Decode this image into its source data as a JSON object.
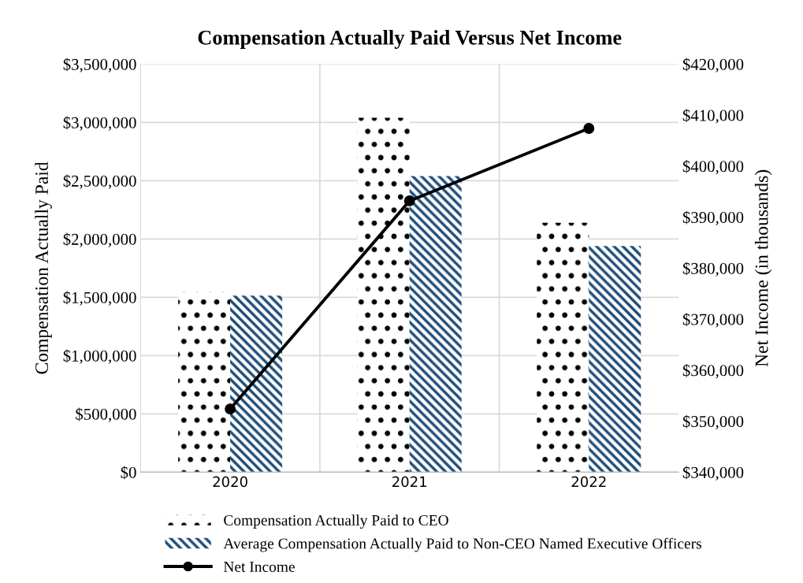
{
  "chart_data": {
    "type": "bar",
    "title": "Compensation Actually Paid Versus Net Income",
    "ylabel": "Compensation Actually Paid",
    "y2label": "Net Income (in thousands)",
    "categories": [
      "2020",
      "2021",
      "2022"
    ],
    "series": [
      {
        "name": "Compensation Actually Paid to CEO",
        "color": "#000000",
        "values": [
          1550000,
          3040000,
          2140000
        ]
      },
      {
        "name": "Average Compensation Actually Paid to Non-CEO Named Executive Officers",
        "color": "#1f4e79",
        "values": [
          1515000,
          2540000,
          1940000
        ]
      },
      {
        "name": "Net Income",
        "type": "line",
        "axis": "y2",
        "color": "#000000",
        "marker": "circle",
        "line_style": "solid",
        "values": [
          352400,
          393200,
          407400
        ]
      }
    ],
    "ylim": [
      0,
      3500000
    ],
    "yticks": [
      {
        "value": 0,
        "label": "$0"
      },
      {
        "value": 500000,
        "label": "$500,000"
      },
      {
        "value": 1000000,
        "label": "$1,000,000"
      },
      {
        "value": 1500000,
        "label": "$1,500,000"
      },
      {
        "value": 2000000,
        "label": "$2,000,000"
      },
      {
        "value": 2500000,
        "label": "$2,500,000"
      },
      {
        "value": 3000000,
        "label": "$3,000,000"
      },
      {
        "value": 3500000,
        "label": "$3,500,000"
      }
    ],
    "y2lim": [
      340000,
      420000
    ],
    "y2ticks": [
      {
        "value": 340000,
        "label": "$340,000"
      },
      {
        "value": 350000,
        "label": "$350,000"
      },
      {
        "value": 360000,
        "label": "$360,000"
      },
      {
        "value": 370000,
        "label": "$370,000"
      },
      {
        "value": 380000,
        "label": "$380,000"
      },
      {
        "value": 390000,
        "label": "$390,000"
      },
      {
        "value": 400000,
        "label": "$400,000"
      },
      {
        "value": 410000,
        "label": "$410,000"
      },
      {
        "value": 420000,
        "label": "$420,000"
      }
    ],
    "grid": true,
    "legend": "bottom"
  }
}
